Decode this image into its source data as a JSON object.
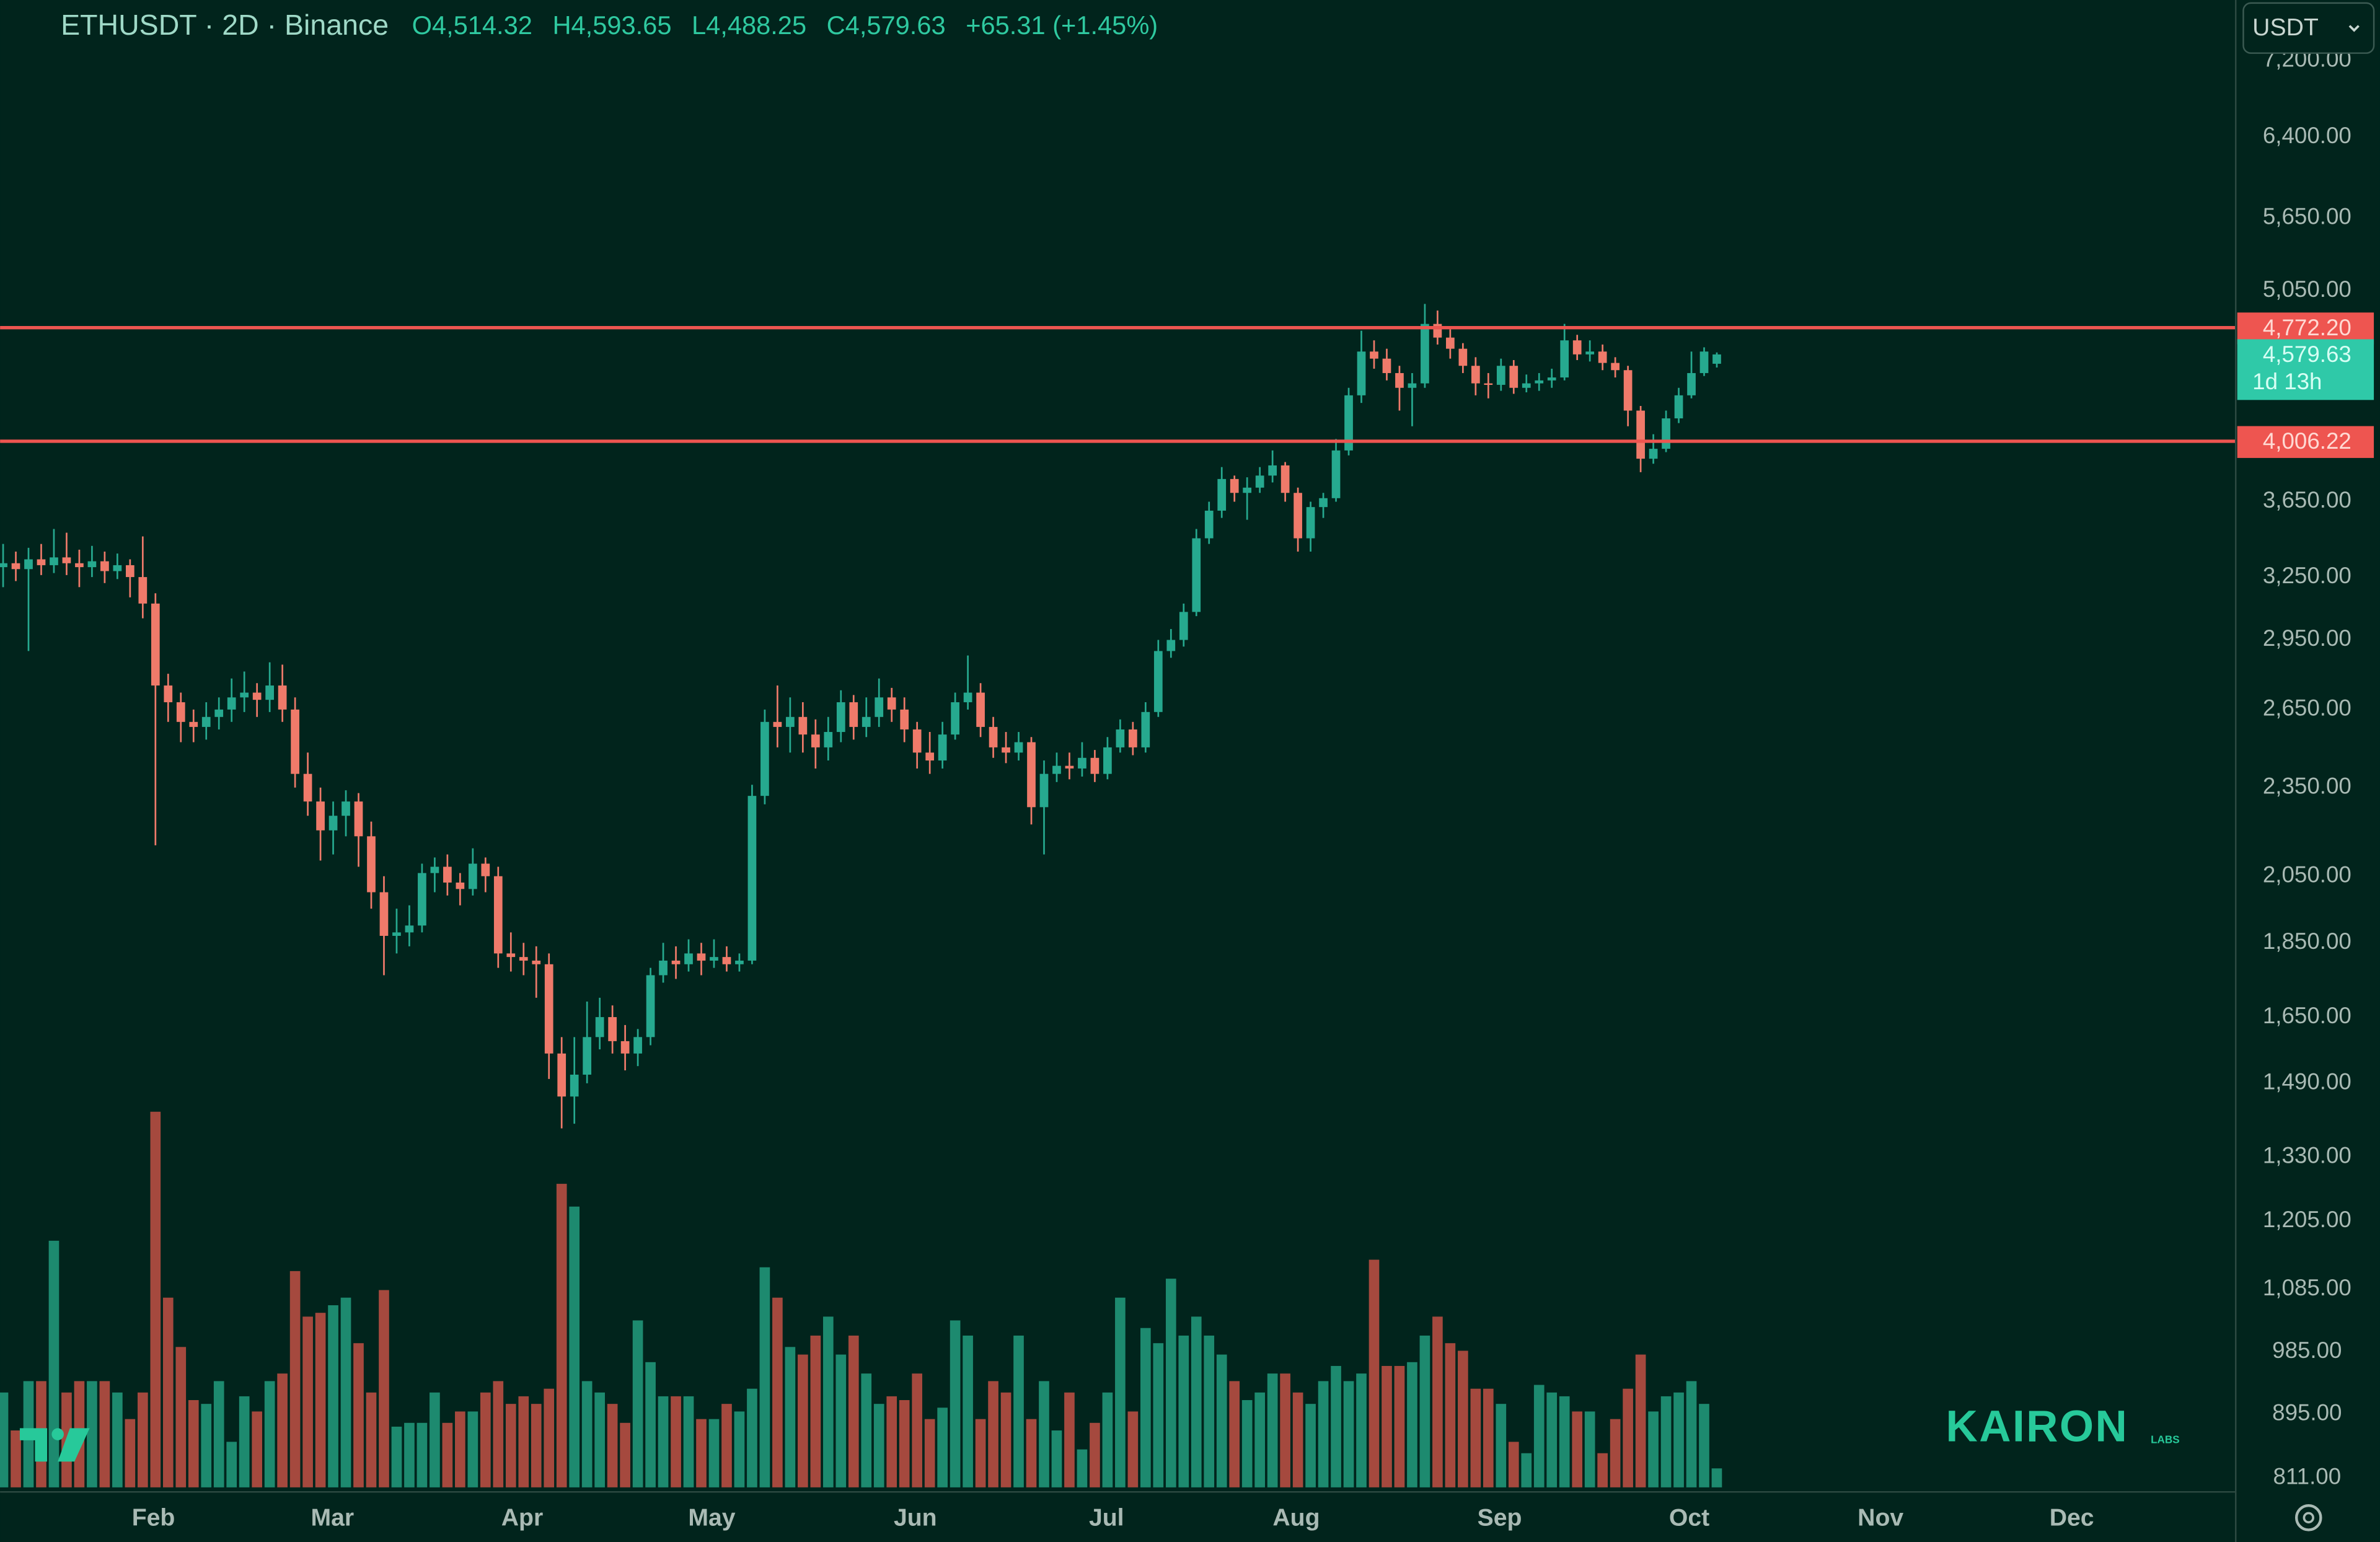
{
  "header": {
    "symbol": "ETHUSDT · 2D · Binance",
    "ohlc": [
      "O4,514.32",
      "H4,593.65",
      "L4,488.25",
      "C4,579.63"
    ],
    "change": "+65.31 (+1.45%)",
    "currency": "USDT"
  },
  "watermark": {
    "brand": "KAIRON",
    "sub": "LABS"
  },
  "chart_data": {
    "type": "candlestick",
    "log_scale": true,
    "up_color": "#26a98f",
    "down_color": "#ef7a6a",
    "volume_up_color": "#1d8a6f",
    "volume_down_color": "#a5493e",
    "xlim": [
      -0.24,
      175.76
    ],
    "xticks": [
      {
        "value": 11.84,
        "label": "Feb"
      },
      {
        "value": 25.94,
        "label": "Mar"
      },
      {
        "value": 40.89,
        "label": "Apr"
      },
      {
        "value": 55.83,
        "label": "May"
      },
      {
        "value": 71.86,
        "label": "Jun"
      },
      {
        "value": 86.92,
        "label": "Jul"
      },
      {
        "value": 101.87,
        "label": "Aug"
      },
      {
        "value": 117.89,
        "label": "Sep"
      },
      {
        "value": 132.83,
        "label": "Oct"
      },
      {
        "value": 147.9,
        "label": "Nov"
      },
      {
        "value": 162.96,
        "label": "Dec"
      }
    ],
    "ylim": [
      794,
      7906
    ],
    "yticks": [
      {
        "value": 811,
        "label": "811.00"
      },
      {
        "value": 895,
        "label": "895.00"
      },
      {
        "value": 985,
        "label": "985.00"
      },
      {
        "value": 1085,
        "label": "1,085.00"
      },
      {
        "value": 1205,
        "label": "1,205.00"
      },
      {
        "value": 1330,
        "label": "1,330.00"
      },
      {
        "value": 1490,
        "label": "1,490.00"
      },
      {
        "value": 1650,
        "label": "1,650.00"
      },
      {
        "value": 1850,
        "label": "1,850.00"
      },
      {
        "value": 2050,
        "label": "2,050.00"
      },
      {
        "value": 2350,
        "label": "2,350.00"
      },
      {
        "value": 2650,
        "label": "2,650.00"
      },
      {
        "value": 2950,
        "label": "2,950.00"
      },
      {
        "value": 3250,
        "label": "3,250.00"
      },
      {
        "value": 3650,
        "label": "3,650.00"
      },
      {
        "value": 5050,
        "label": "5,050.00"
      },
      {
        "value": 5650,
        "label": "5,650.00"
      },
      {
        "value": 6400,
        "label": "6,400.00"
      },
      {
        "value": 7200,
        "label": "7,200.00"
      }
    ],
    "levels": [
      {
        "value": 4772.2,
        "label": "4,772.20"
      },
      {
        "value": 4006.22,
        "label": "4,006.22"
      }
    ],
    "level_color": "#ee5550",
    "last_price": {
      "value": 4579.63,
      "label": "4,579.63",
      "countdown": "1d 13h"
    },
    "open": [
      3300,
      3320,
      3290,
      3340,
      3310,
      3350,
      3320,
      3300,
      3330,
      3280,
      3310,
      3250,
      3120,
      2750,
      2680,
      2600,
      2580,
      2620,
      2650,
      2700,
      2720,
      2690,
      2750,
      2650,
      2400,
      2300,
      2200,
      2250,
      2300,
      2180,
      2000,
      1870,
      1880,
      1900,
      2060,
      2080,
      2030,
      2010,
      2090,
      2050,
      1820,
      1810,
      1800,
      1790,
      1560,
      1460,
      1510,
      1600,
      1650,
      1590,
      1560,
      1600,
      1760,
      1800,
      1790,
      1820,
      1800,
      1810,
      1790,
      1800,
      2320,
      2600,
      2580,
      2620,
      2550,
      2500,
      2560,
      2680,
      2580,
      2620,
      2700,
      2650,
      2570,
      2480,
      2450,
      2550,
      2680,
      2720,
      2580,
      2500,
      2480,
      2520,
      2280,
      2400,
      2430,
      2420,
      2460,
      2400,
      2500,
      2570,
      2500,
      2640,
      2900,
      2950,
      3080,
      3450,
      3600,
      3780,
      3700,
      3730,
      3800,
      3860,
      3700,
      3450,
      3620,
      3670,
      3950,
      4300,
      4600,
      4550,
      4450,
      4350,
      4380,
      4800,
      4700,
      4620,
      4500,
      4380,
      4370,
      4500,
      4350,
      4380,
      4400,
      4420,
      4680,
      4580,
      4600,
      4520,
      4470,
      4200,
      3900,
      3960,
      4150,
      4300,
      4450,
      4514.32
    ],
    "high": [
      3420,
      3380,
      3400,
      3420,
      3500,
      3480,
      3390,
      3410,
      3380,
      3370,
      3340,
      3460,
      3170,
      2800,
      2720,
      2650,
      2680,
      2700,
      2780,
      2810,
      2760,
      2850,
      2840,
      2700,
      2480,
      2350,
      2300,
      2340,
      2330,
      2230,
      2050,
      1950,
      1960,
      2090,
      2110,
      2120,
      2060,
      2140,
      2110,
      2080,
      1880,
      1850,
      1840,
      1820,
      1600,
      1600,
      1690,
      1700,
      1680,
      1630,
      1620,
      1780,
      1850,
      1840,
      1860,
      1850,
      1860,
      1840,
      1820,
      2360,
      2650,
      2750,
      2700,
      2680,
      2610,
      2620,
      2730,
      2710,
      2700,
      2780,
      2740,
      2700,
      2600,
      2560,
      2600,
      2720,
      2880,
      2760,
      2620,
      2560,
      2560,
      2540,
      2450,
      2480,
      2480,
      2520,
      2490,
      2540,
      2610,
      2600,
      2680,
      2950,
      3000,
      3120,
      3500,
      3650,
      3850,
      3800,
      3790,
      3850,
      3950,
      3880,
      3730,
      3650,
      3700,
      4020,
      4350,
      4750,
      4680,
      4620,
      4500,
      4450,
      4950,
      4900,
      4760,
      4660,
      4560,
      4450,
      4550,
      4540,
      4440,
      4450,
      4480,
      4800,
      4720,
      4680,
      4650,
      4560,
      4500,
      4230,
      4050,
      4200,
      4350,
      4600,
      4630,
      4593.65
    ],
    "low": [
      3200,
      3230,
      2900,
      3260,
      3270,
      3260,
      3200,
      3250,
      3220,
      3240,
      3150,
      3050,
      2150,
      2600,
      2520,
      2520,
      2530,
      2570,
      2600,
      2640,
      2620,
      2640,
      2600,
      2350,
      2250,
      2100,
      2120,
      2180,
      2080,
      1950,
      1760,
      1820,
      1840,
      1880,
      2000,
      1990,
      1960,
      1990,
      2000,
      1780,
      1770,
      1760,
      1700,
      1500,
      1390,
      1400,
      1490,
      1570,
      1560,
      1520,
      1530,
      1580,
      1740,
      1750,
      1770,
      1760,
      1780,
      1770,
      1770,
      1790,
      2290,
      2500,
      2480,
      2480,
      2420,
      2450,
      2520,
      2530,
      2540,
      2580,
      2600,
      2520,
      2420,
      2400,
      2420,
      2530,
      2650,
      2540,
      2460,
      2440,
      2450,
      2220,
      2120,
      2370,
      2380,
      2390,
      2370,
      2380,
      2480,
      2470,
      2480,
      2620,
      2870,
      2920,
      3060,
      3420,
      3560,
      3650,
      3550,
      3700,
      3760,
      3650,
      3380,
      3380,
      3560,
      3650,
      3920,
      4250,
      4480,
      4400,
      4200,
      4100,
      4350,
      4650,
      4550,
      4450,
      4300,
      4280,
      4330,
      4310,
      4320,
      4330,
      4350,
      4400,
      4540,
      4530,
      4470,
      4420,
      4100,
      3820,
      3870,
      3940,
      4120,
      4280,
      4430,
      4488.25
    ],
    "close": [
      3320,
      3290,
      3340,
      3310,
      3350,
      3320,
      3300,
      3330,
      3280,
      3310,
      3250,
      3120,
      2750,
      2680,
      2600,
      2580,
      2620,
      2650,
      2700,
      2720,
      2690,
      2750,
      2650,
      2400,
      2300,
      2200,
      2250,
      2300,
      2180,
      2000,
      1870,
      1880,
      1900,
      2060,
      2080,
      2030,
      2010,
      2090,
      2050,
      1820,
      1810,
      1800,
      1790,
      1560,
      1460,
      1510,
      1600,
      1650,
      1590,
      1560,
      1600,
      1760,
      1800,
      1790,
      1820,
      1800,
      1810,
      1790,
      1800,
      2320,
      2600,
      2580,
      2620,
      2550,
      2500,
      2560,
      2680,
      2580,
      2620,
      2700,
      2650,
      2570,
      2480,
      2450,
      2550,
      2680,
      2720,
      2580,
      2500,
      2480,
      2520,
      2280,
      2400,
      2430,
      2420,
      2460,
      2400,
      2500,
      2570,
      2500,
      2640,
      2900,
      2950,
      3080,
      3450,
      3600,
      3780,
      3700,
      3730,
      3800,
      3860,
      3700,
      3450,
      3620,
      3670,
      3950,
      4300,
      4600,
      4550,
      4450,
      4350,
      4380,
      4800,
      4700,
      4620,
      4500,
      4380,
      4370,
      4500,
      4350,
      4380,
      4400,
      4420,
      4680,
      4580,
      4600,
      4520,
      4470,
      4200,
      3900,
      3960,
      4150,
      4300,
      4450,
      4600,
      4579.63
    ],
    "volume_lim": [
      0,
      100
    ],
    "volume": [
      25,
      15,
      28,
      28,
      65,
      25,
      28,
      28,
      28,
      25,
      18,
      25,
      99,
      50,
      37,
      23,
      22,
      28,
      12,
      24,
      20,
      28,
      30,
      57,
      45,
      46,
      48,
      50,
      38,
      25,
      52,
      16,
      17,
      17,
      25,
      17,
      20,
      20,
      25,
      28,
      22,
      24,
      22,
      26,
      80,
      74,
      28,
      25,
      22,
      17,
      44,
      33,
      24,
      24,
      24,
      18,
      18,
      22,
      20,
      26,
      58,
      50,
      37,
      35,
      40,
      45,
      35,
      40,
      30,
      22,
      24,
      23,
      30,
      18,
      21,
      44,
      40,
      18,
      28,
      25,
      40,
      18,
      28,
      15,
      25,
      10,
      17,
      25,
      50,
      20,
      42,
      38,
      55,
      40,
      45,
      40,
      35,
      28,
      23,
      25,
      30,
      30,
      25,
      22,
      28,
      32,
      28,
      30,
      60,
      32,
      32,
      33,
      40,
      45,
      38,
      36,
      26,
      26,
      22,
      12,
      9,
      27,
      25,
      24,
      20,
      20,
      9,
      18,
      26,
      35,
      20,
      24,
      25,
      28,
      22,
      5
    ]
  }
}
